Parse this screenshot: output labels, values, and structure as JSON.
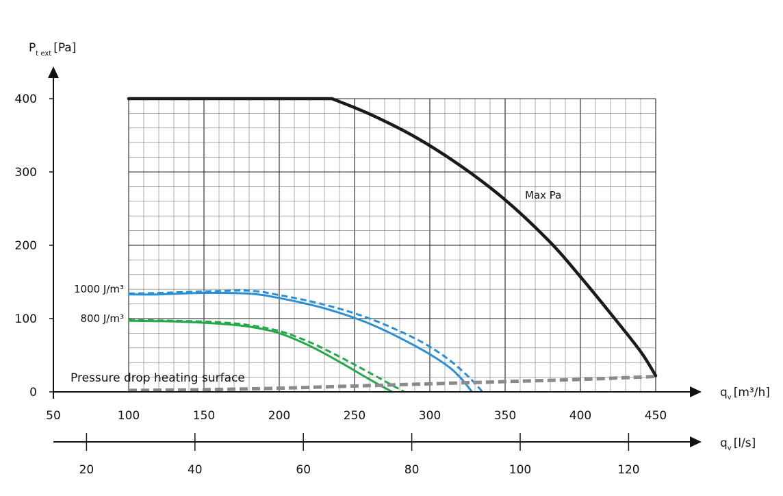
{
  "chart_data": {
    "type": "line",
    "y_axis": {
      "label_main": "P",
      "label_sub": "t ext",
      "label_unit": "[Pa]",
      "ticks": [
        "0",
        "100",
        "200",
        "300",
        "400"
      ],
      "ylim": [
        0,
        400
      ]
    },
    "x_axis_primary": {
      "label_main": "q",
      "label_sub": "v",
      "label_unit": "[m³/h]",
      "ticks": [
        "50",
        "100",
        "150",
        "200",
        "250",
        "300",
        "350",
        "400",
        "450"
      ],
      "xlim": [
        50,
        450
      ]
    },
    "x_axis_secondary": {
      "label_main": "q",
      "label_sub": "v",
      "label_unit": "[l/s]",
      "ticks": [
        "20",
        "40",
        "60",
        "80",
        "100",
        "120"
      ]
    },
    "grid": true,
    "annotations": {
      "max_pa": "Max Pa",
      "curve_1000": "1000 J/m³",
      "curve_800": "800 J/m³",
      "heating": "Pressure drop heating surface"
    },
    "series": [
      {
        "name": "Max Pa",
        "color": "#1a1a1a",
        "style": "solid",
        "x": [
          100,
          235,
          260,
          290,
          320,
          350,
          380,
          400,
          420,
          440,
          450
        ],
        "y": [
          400,
          400,
          379,
          348,
          309,
          262,
          204,
          157,
          107,
          55,
          22
        ]
      },
      {
        "name": "1000 J/m³",
        "color": "#2b8fd6",
        "style": "solid",
        "x": [
          100,
          120,
          150,
          180,
          200,
          230,
          260,
          290,
          310,
          320,
          328
        ],
        "y": [
          133,
          133,
          135,
          134,
          128,
          114,
          93,
          63,
          38,
          20,
          0
        ]
      },
      {
        "name": "1000 J/m³",
        "color": "#2b8fd6",
        "style": "dashed",
        "x": [
          100,
          120,
          150,
          180,
          200,
          230,
          260,
          290,
          310,
          325,
          335
        ],
        "y": [
          134,
          135,
          137,
          138,
          132,
          119,
          100,
          73,
          48,
          22,
          0
        ]
      },
      {
        "name": "800 J/m³",
        "color": "#24a84a",
        "style": "solid",
        "x": [
          100,
          130,
          160,
          180,
          200,
          220,
          240,
          260,
          275
        ],
        "y": [
          97,
          96,
          93,
          89,
          80,
          63,
          41,
          17,
          0
        ]
      },
      {
        "name": "800 J/m³",
        "color": "#24a84a",
        "style": "dashed",
        "x": [
          100,
          130,
          160,
          180,
          200,
          220,
          240,
          260,
          283
        ],
        "y": [
          98,
          97,
          95,
          91,
          83,
          68,
          48,
          26,
          0
        ]
      },
      {
        "name": "Pressure drop heating surface",
        "color": "#8a8a8a",
        "style": "dashed",
        "x": [
          100,
          150,
          200,
          250,
          300,
          350,
          400,
          450
        ],
        "y": [
          2,
          3,
          5,
          8,
          11,
          14,
          17,
          21
        ]
      }
    ]
  }
}
